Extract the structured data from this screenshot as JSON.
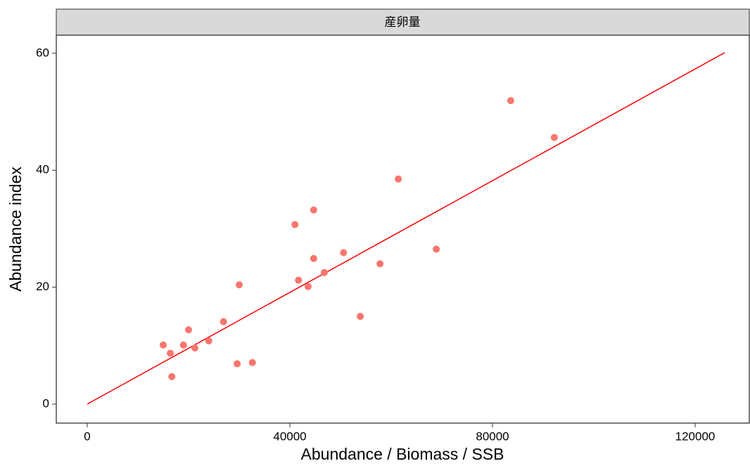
{
  "chart_data": {
    "type": "scatter",
    "facet": "産卵量",
    "xlabel": "Abundance / Biomass / SSB",
    "ylabel": "Abundance index",
    "x": [
      15000,
      16400,
      16700,
      19000,
      20000,
      21250,
      24000,
      26900,
      29600,
      30000,
      32600,
      41000,
      41700,
      43600,
      44700,
      44700,
      46800,
      50600,
      53900,
      57800,
      61400,
      68900,
      83600,
      92200
    ],
    "values": [
      10.1,
      8.7,
      4.7,
      10.1,
      12.7,
      9.6,
      10.8,
      14.1,
      6.9,
      20.4,
      7.1,
      30.7,
      21.2,
      20.1,
      33.2,
      24.9,
      22.5,
      25.9,
      15.0,
      24.0,
      38.5,
      26.5,
      51.9,
      45.6
    ],
    "color": "#F8766D",
    "fit_line": {
      "x": [
        0,
        125833
      ],
      "values": [
        0,
        60.1
      ],
      "color": "#ff0000"
    },
    "xlim": [
      -6111,
      130833
    ],
    "ylim": [
      -3.25,
      63.1
    ],
    "xticks": [
      0,
      40000,
      80000,
      120000
    ],
    "yticks": [
      0,
      20,
      40,
      60
    ]
  }
}
